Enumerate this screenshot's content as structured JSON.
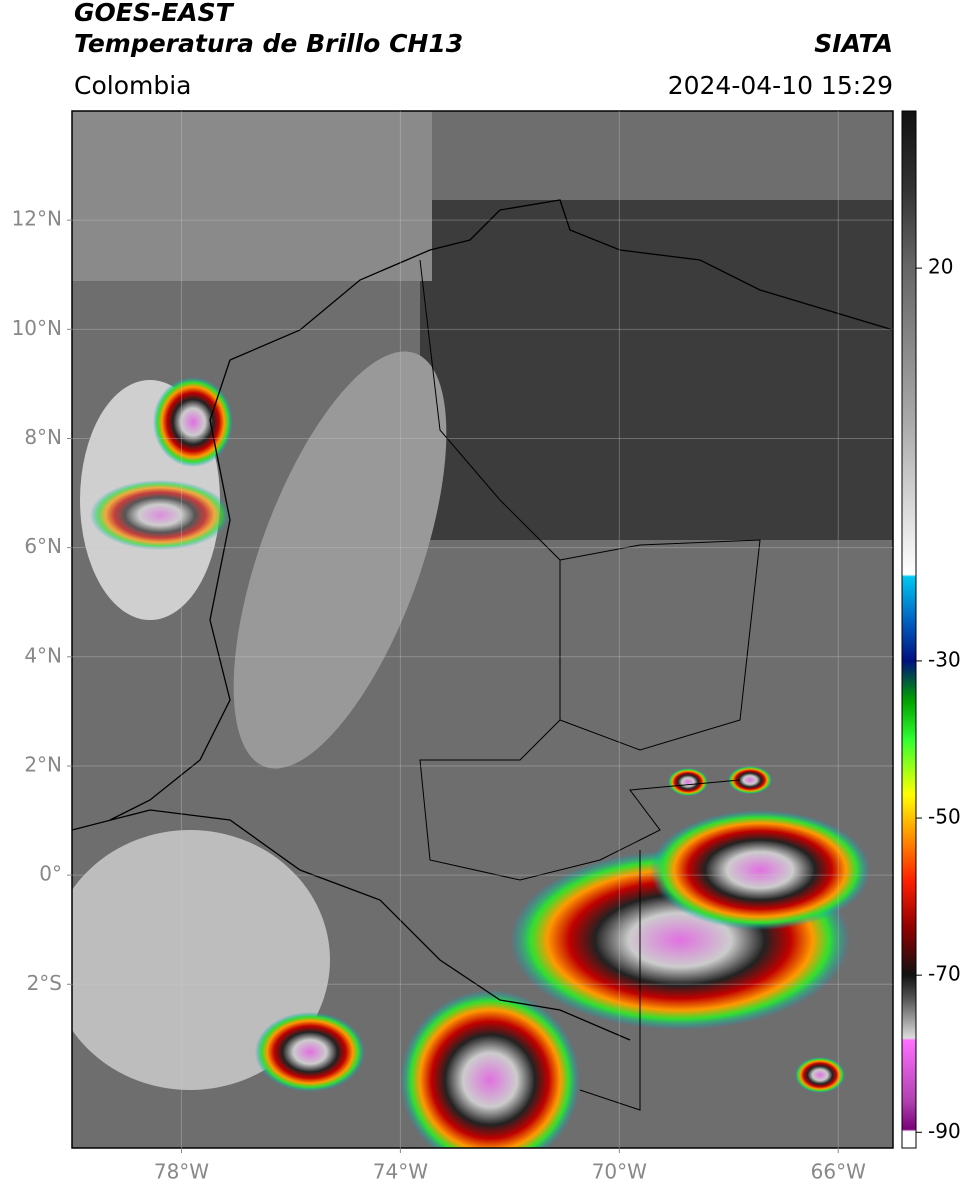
{
  "header": {
    "satellite": "GOES-EAST",
    "product": "Temperatura de Brillo CH13",
    "region": "Colombia",
    "source": "SIATA",
    "datetime": "2024-04-10 15:29"
  },
  "map": {
    "xlim": [
      -80,
      -65
    ],
    "ylim": [
      -5,
      14
    ],
    "xticks": [
      {
        "value": -78,
        "label": "78°W"
      },
      {
        "value": -74,
        "label": "74°W"
      },
      {
        "value": -70,
        "label": "70°W"
      },
      {
        "value": -66,
        "label": "66°W"
      }
    ],
    "yticks": [
      {
        "value": 12,
        "label": "12°N"
      },
      {
        "value": 10,
        "label": "10°N"
      },
      {
        "value": 8,
        "label": "8°N"
      },
      {
        "value": 6,
        "label": "6°N"
      },
      {
        "value": 4,
        "label": "4°N"
      },
      {
        "value": 2,
        "label": "2°N"
      },
      {
        "value": 0,
        "label": "0°"
      },
      {
        "value": -2,
        "label": "2°S"
      }
    ],
    "grid": true
  },
  "colorbar": {
    "lim": [
      -92,
      40
    ],
    "ticks": [
      20,
      -30,
      -50,
      -70,
      -90
    ]
  }
}
